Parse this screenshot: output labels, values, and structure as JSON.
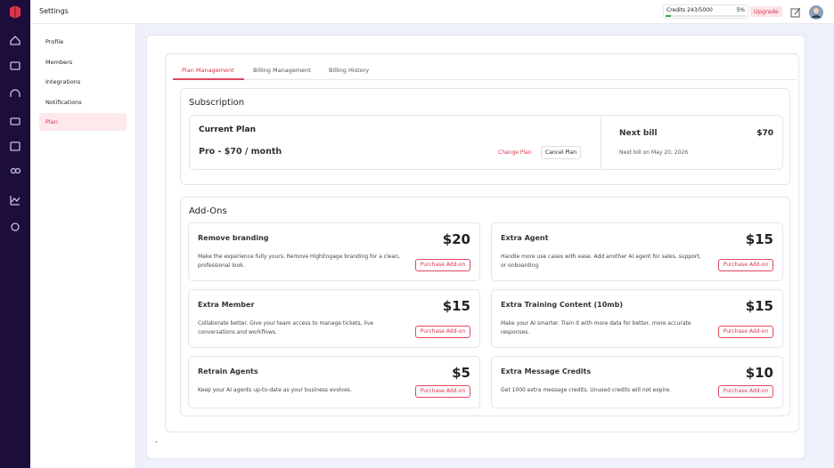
{
  "header": {
    "title": "Settings",
    "credits": "Credits 243/5000",
    "percent": "5%",
    "upgrade": "Upgrade"
  },
  "nav": [
    "Profile",
    "Members",
    "Integrations",
    "Notifications",
    "Plan"
  ],
  "tabs": [
    "Plan Management",
    "Billing Management",
    "Billing History"
  ],
  "subscription": {
    "title": "Subscription",
    "current_plan": "Current Plan",
    "plan": "Pro - $70 / month",
    "change": "Change Plan",
    "cancel": "Cancel Plan",
    "next_bill": "Next bill",
    "amount": "$70",
    "next_bill_date": "Next bill on May 20, 2026"
  },
  "addons": {
    "title": "Add-Ons",
    "items": [
      {
        "name": "Remove branding",
        "price": "$20",
        "description": "Make the experience fully yours. Remove HighEngage branding for a clean, professional look.",
        "button": "Purchase Add-on"
      },
      {
        "name": "Extra Agent",
        "price": "$15",
        "description": "Handle more use cases with ease. Add another AI agent for sales, support, or onboarding.",
        "button": "Purchase Add-on"
      },
      {
        "name": "Extra Member",
        "price": "$15",
        "description": "Collaborate better. Give your team access to manage tickets, live conversations and workflows.",
        "button": "Purchase Add-on"
      },
      {
        "name": "Extra Training Content (10mb)",
        "price": "$15",
        "description": "Make your AI smarter. Train it with more data for better, more accurate responses.",
        "button": "Purchase Add-on"
      },
      {
        "name": "Retrain Agents",
        "price": "$5",
        "description": "Keep your AI agents up-to-date as your business evolves.",
        "button": "Purchase Add-on"
      },
      {
        "name": "Extra Message Credits",
        "price": "$10",
        "description": "Get 1000 extra message credits. Unused credits will not expire.",
        "button": "Purchase Add-on"
      }
    ]
  },
  "footer": "-"
}
